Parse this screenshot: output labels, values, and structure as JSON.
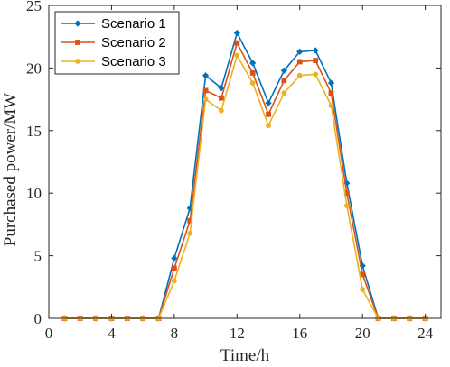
{
  "chart_data": {
    "type": "line",
    "xlabel": "Time/h",
    "ylabel": "Purchased power/MW",
    "xlim": [
      0,
      25
    ],
    "ylim": [
      0,
      25
    ],
    "xticks": [
      0,
      4,
      8,
      12,
      16,
      20,
      24
    ],
    "yticks": [
      0,
      5,
      10,
      15,
      20,
      25
    ],
    "grid": false,
    "legend_position": "top-left",
    "x": [
      1,
      2,
      3,
      4,
      5,
      6,
      7,
      8,
      9,
      10,
      11,
      12,
      13,
      14,
      15,
      16,
      17,
      18,
      19,
      20,
      21,
      22,
      23,
      24
    ],
    "series": [
      {
        "name": "Scenario 1",
        "color": "#0072BD",
        "marker": "diamond",
        "values": [
          0,
          0,
          0,
          0,
          0,
          0,
          0,
          4.8,
          8.8,
          19.4,
          18.4,
          22.8,
          20.4,
          17.2,
          19.8,
          21.3,
          21.4,
          18.8,
          10.8,
          4.2,
          0,
          0,
          0,
          0
        ]
      },
      {
        "name": "Scenario 2",
        "color": "#D95319",
        "marker": "square",
        "values": [
          0,
          0,
          0,
          0,
          0,
          0,
          0,
          4.0,
          7.8,
          18.2,
          17.6,
          22.0,
          19.6,
          16.3,
          19.0,
          20.5,
          20.6,
          18.0,
          10.0,
          3.5,
          0,
          0,
          0,
          0
        ]
      },
      {
        "name": "Scenario 3",
        "color": "#EDB120",
        "marker": "circle",
        "values": [
          0,
          0,
          0,
          0,
          0,
          0,
          0,
          3.0,
          6.8,
          17.5,
          16.6,
          21.0,
          18.8,
          15.4,
          18.0,
          19.4,
          19.5,
          17.0,
          9.0,
          2.3,
          0,
          0,
          0,
          0
        ]
      }
    ]
  }
}
